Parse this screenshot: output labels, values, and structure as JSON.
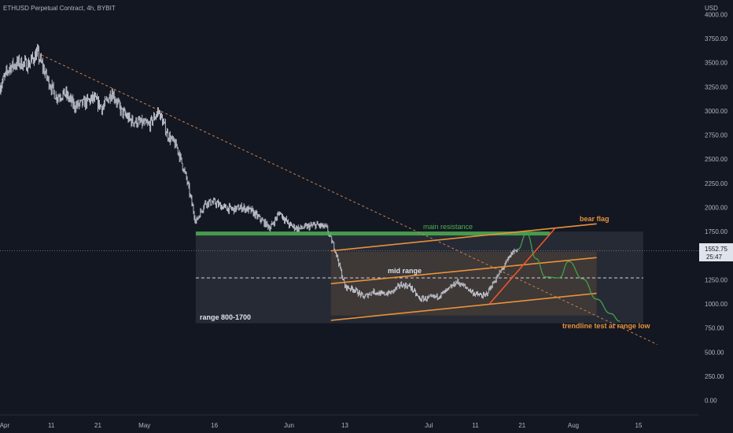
{
  "header": {
    "title": "ETHUSD Perpetual Contract, 4h, BYBIT"
  },
  "price_axis": {
    "currency": "USD"
  },
  "last_price": {
    "value": "1552.75",
    "countdown": "25:47"
  },
  "colors": {
    "background": "#131722",
    "candles": "#c8cbd4",
    "resistance": "#4caf50",
    "flag": "#e8923a",
    "projection": "#43a047",
    "breakout": "#f0552a",
    "trendline": "#c9824a",
    "range_box": "#363a45"
  },
  "chart_data": {
    "type": "line",
    "title": "",
    "y_ticks": [
      0,
      250,
      500,
      750,
      1000,
      1250,
      1500,
      1750,
      2000,
      2250,
      2500,
      2750,
      3000,
      3250,
      3500,
      3750,
      4000
    ],
    "y_tick_labels": [
      "0.00",
      "250.00",
      "500.00",
      "750.00",
      "1000.00",
      "1250.00",
      "1500.00",
      "1750.00",
      "2000.00",
      "2250.00",
      "2500.00",
      "2750.00",
      "3000.00",
      "3250.00",
      "3500.00",
      "3750.00",
      "4000.00"
    ],
    "ylim": [
      -150,
      4150
    ],
    "xlim": [
      "2022-03-31",
      "2022-08-28"
    ],
    "x_ticks": [
      {
        "date": "2022-04-01",
        "label": "Apr"
      },
      {
        "date": "2022-04-11",
        "label": "11"
      },
      {
        "date": "2022-04-21",
        "label": "21"
      },
      {
        "date": "2022-05-01",
        "label": "May"
      },
      {
        "date": "2022-05-16",
        "label": "16"
      },
      {
        "date": "2022-06-01",
        "label": "Jun"
      },
      {
        "date": "2022-06-13",
        "label": "13"
      },
      {
        "date": "2022-07-01",
        "label": "Jul"
      },
      {
        "date": "2022-07-11",
        "label": "11"
      },
      {
        "date": "2022-07-21",
        "label": "21"
      },
      {
        "date": "2022-08-01",
        "label": "Aug"
      },
      {
        "date": "2022-08-15",
        "label": "15"
      }
    ],
    "price_path": [
      {
        "x": "2022-03-31",
        "y": 3250
      },
      {
        "x": "2022-04-02",
        "y": 3450
      },
      {
        "x": "2022-04-04",
        "y": 3500
      },
      {
        "x": "2022-04-06",
        "y": 3480
      },
      {
        "x": "2022-04-08",
        "y": 3600
      },
      {
        "x": "2022-04-10",
        "y": 3350
      },
      {
        "x": "2022-04-12",
        "y": 3150
      },
      {
        "x": "2022-04-14",
        "y": 3180
      },
      {
        "x": "2022-04-16",
        "y": 3050
      },
      {
        "x": "2022-04-18",
        "y": 3080
      },
      {
        "x": "2022-04-20",
        "y": 3130
      },
      {
        "x": "2022-04-22",
        "y": 3030
      },
      {
        "x": "2022-04-24",
        "y": 3200
      },
      {
        "x": "2022-04-26",
        "y": 3000
      },
      {
        "x": "2022-04-28",
        "y": 2900
      },
      {
        "x": "2022-04-30",
        "y": 2880
      },
      {
        "x": "2022-05-02",
        "y": 2850
      },
      {
        "x": "2022-05-04",
        "y": 3000
      },
      {
        "x": "2022-05-06",
        "y": 2750
      },
      {
        "x": "2022-05-08",
        "y": 2620
      },
      {
        "x": "2022-05-10",
        "y": 2300
      },
      {
        "x": "2022-05-12",
        "y": 1850
      },
      {
        "x": "2022-05-14",
        "y": 2050
      },
      {
        "x": "2022-05-16",
        "y": 2050
      },
      {
        "x": "2022-05-18",
        "y": 2000
      },
      {
        "x": "2022-05-20",
        "y": 1980
      },
      {
        "x": "2022-05-22",
        "y": 2000
      },
      {
        "x": "2022-05-24",
        "y": 1960
      },
      {
        "x": "2022-05-26",
        "y": 1870
      },
      {
        "x": "2022-05-28",
        "y": 1790
      },
      {
        "x": "2022-05-30",
        "y": 1950
      },
      {
        "x": "2022-06-01",
        "y": 1820
      },
      {
        "x": "2022-06-03",
        "y": 1780
      },
      {
        "x": "2022-06-05",
        "y": 1800
      },
      {
        "x": "2022-06-07",
        "y": 1820
      },
      {
        "x": "2022-06-09",
        "y": 1790
      },
      {
        "x": "2022-06-11",
        "y": 1550
      },
      {
        "x": "2022-06-13",
        "y": 1180
      },
      {
        "x": "2022-06-15",
        "y": 1150
      },
      {
        "x": "2022-06-17",
        "y": 1070
      },
      {
        "x": "2022-06-19",
        "y": 1130
      },
      {
        "x": "2022-06-21",
        "y": 1100
      },
      {
        "x": "2022-06-23",
        "y": 1120
      },
      {
        "x": "2022-06-25",
        "y": 1200
      },
      {
        "x": "2022-06-27",
        "y": 1180
      },
      {
        "x": "2022-06-29",
        "y": 1050
      },
      {
        "x": "2022-07-01",
        "y": 1060
      },
      {
        "x": "2022-07-03",
        "y": 1080
      },
      {
        "x": "2022-07-05",
        "y": 1140
      },
      {
        "x": "2022-07-07",
        "y": 1230
      },
      {
        "x": "2022-07-09",
        "y": 1170
      },
      {
        "x": "2022-07-11",
        "y": 1100
      },
      {
        "x": "2022-07-13",
        "y": 1080
      },
      {
        "x": "2022-07-15",
        "y": 1230
      },
      {
        "x": "2022-07-17",
        "y": 1380
      },
      {
        "x": "2022-07-19",
        "y": 1540
      },
      {
        "x": "2022-07-20",
        "y": 1570
      }
    ],
    "main_resistance": {
      "x0": "2022-05-12",
      "x1": "2022-07-27",
      "y": 1730
    },
    "range_box": {
      "x0": "2022-05-12",
      "x1": "2022-08-16",
      "y0": 800,
      "y1": 1750
    },
    "mid_range": {
      "x0": "2022-05-12",
      "x1": "2022-08-16",
      "y": 1270
    },
    "channel_box": {
      "x0": "2022-06-10",
      "x1": "2022-08-06",
      "y0": 880,
      "y1": 1540
    },
    "trendline": [
      {
        "x": "2022-04-08",
        "y": 3600
      },
      {
        "x": "2022-08-19",
        "y": 580
      }
    ],
    "bear_flag": {
      "upper": [
        {
          "x": "2022-06-10",
          "y": 1550
        },
        {
          "x": "2022-08-06",
          "y": 1830
        }
      ],
      "middle": [
        {
          "x": "2022-06-10",
          "y": 1210
        },
        {
          "x": "2022-08-06",
          "y": 1480
        }
      ],
      "lower": [
        {
          "x": "2022-06-10",
          "y": 830
        },
        {
          "x": "2022-08-06",
          "y": 1110
        }
      ]
    },
    "breakout_line": [
      {
        "x": "2022-07-14",
        "y": 1000
      },
      {
        "x": "2022-07-28",
        "y": 1780
      }
    ],
    "projection_path": [
      {
        "x": "2022-07-20",
        "y": 1560
      },
      {
        "x": "2022-07-22",
        "y": 1730
      },
      {
        "x": "2022-07-24",
        "y": 1470
      },
      {
        "x": "2022-07-26",
        "y": 1280
      },
      {
        "x": "2022-07-29",
        "y": 1270
      },
      {
        "x": "2022-07-31",
        "y": 1440
      },
      {
        "x": "2022-08-03",
        "y": 1260
      },
      {
        "x": "2022-08-06",
        "y": 1050
      },
      {
        "x": "2022-08-09",
        "y": 900
      },
      {
        "x": "2022-08-11",
        "y": 820
      }
    ],
    "annotations": {
      "main_resistance": "main resistance",
      "bear_flag": "bear flag",
      "mid_range": "mid range",
      "range": "range 800-1700",
      "trendline_test": "trendline test at range low"
    },
    "grid": false,
    "legend": "none"
  }
}
